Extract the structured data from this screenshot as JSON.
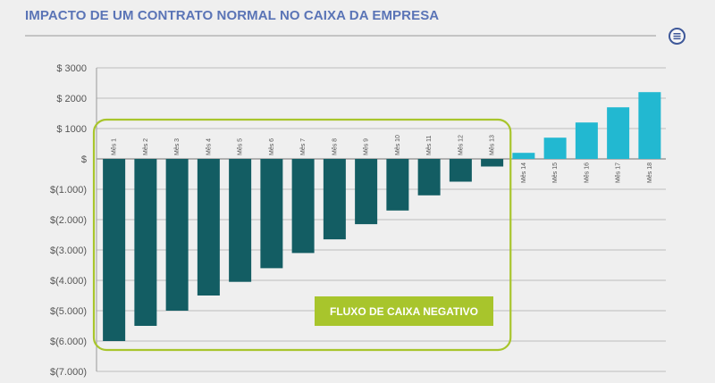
{
  "header": {
    "title": "IMPACTO DE UM CONTRATO NORMAL NO CAIXA DA EMPRESA",
    "menu_icon": "menu-icon"
  },
  "colors": {
    "negative_bar": "#135d63",
    "positive_bar": "#22b8d1",
    "highlight_box": "#a8c52c",
    "title": "#5a74b6"
  },
  "chart_data": {
    "type": "bar",
    "categories": [
      "Mês 1",
      "Mês 2",
      "Mês 3",
      "Mês 4",
      "Mês 5",
      "Mês 6",
      "Mês 7",
      "Mês 8",
      "Mês 9",
      "Mês 10",
      "Mês 11",
      "Mês 12",
      "Mês 13",
      "Mês 14",
      "Mês 15",
      "Mês 16",
      "Mês 17",
      "Mês 18"
    ],
    "values": [
      -6000,
      -5500,
      -5000,
      -4500,
      -4050,
      -3600,
      -3100,
      -2650,
      -2150,
      -1700,
      -1200,
      -750,
      -250,
      200,
      700,
      1200,
      1700,
      2200
    ],
    "ylim": [
      -7000,
      3000
    ],
    "yticks": [
      3000,
      2000,
      1000,
      0,
      -1000,
      -2000,
      -3000,
      -4000,
      -5000,
      -6000,
      -7000
    ],
    "ytick_labels": [
      "$ 3000",
      "$ 2000",
      "$ 1000",
      "$",
      "$(1.000)",
      "$(2.000)",
      "$(3.000)",
      "$(4.000)",
      "$(5.000)",
      "$(6.000)",
      "$(7.000)"
    ],
    "grid": true,
    "annotation": "FLUXO DE CAIXA NEGATIVO"
  }
}
